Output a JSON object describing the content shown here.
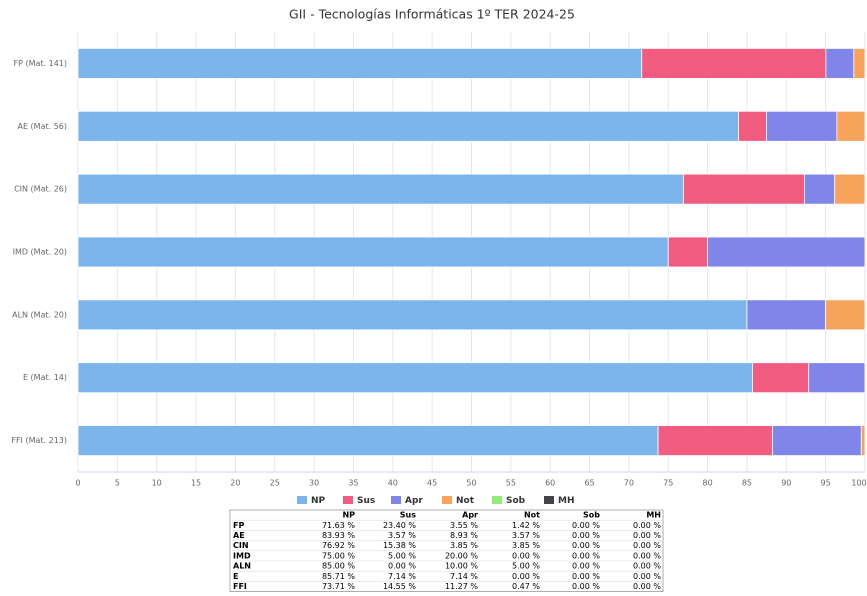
{
  "chart_data": {
    "type": "stacked-bar-horizontal",
    "title": "GII - Tecnologías Informáticas 1º TER 2024-25",
    "categories": [
      "FP (Mat. 141)",
      "AE (Mat. 56)",
      "CIN (Mat. 26)",
      "IMD (Mat. 20)",
      "ALN (Mat. 20)",
      "E (Mat. 14)",
      "FFI (Mat. 213)"
    ],
    "series": [
      {
        "name": "NP",
        "color": "#7cb5ec",
        "values": [
          71.63,
          83.93,
          76.92,
          75.0,
          85.0,
          85.71,
          73.71
        ],
        "value_labels": [
          "71.63 %",
          "83.93 %",
          "76.92 %",
          "75.00 %",
          "85.00 %",
          "85.71 %",
          "73.71 %"
        ]
      },
      {
        "name": "Sus",
        "color": "#f15c80",
        "values": [
          23.4,
          3.57,
          15.38,
          5.0,
          0.0,
          7.14,
          14.55
        ],
        "value_labels": [
          "23.40 %",
          "3.57 %",
          "15.38 %",
          "5.00 %",
          "0.00 %",
          "7.14 %",
          "14.55 %"
        ]
      },
      {
        "name": "Apr",
        "color": "#8085e9",
        "values": [
          3.55,
          8.93,
          3.85,
          20.0,
          10.0,
          7.14,
          11.27
        ],
        "value_labels": [
          "3.55 %",
          "8.93 %",
          "3.85 %",
          "20.00 %",
          "10.00 %",
          "7.14 %",
          "11.27 %"
        ]
      },
      {
        "name": "Not",
        "color": "#f7a35c",
        "values": [
          1.42,
          3.57,
          3.85,
          0.0,
          5.0,
          0.0,
          0.47
        ],
        "value_labels": [
          "1.42 %",
          "3.57 %",
          "3.85 %",
          "0.00 %",
          "5.00 %",
          "0.00 %",
          "0.47 %"
        ]
      },
      {
        "name": "Sob",
        "color": "#90ed7d",
        "values": [
          0.0,
          0.0,
          0.0,
          0.0,
          0.0,
          0.0,
          0.0
        ],
        "value_labels": [
          "0.00 %",
          "0.00 %",
          "0.00 %",
          "0.00 %",
          "0.00 %",
          "0.00 %",
          "0.00 %"
        ]
      },
      {
        "name": "MH",
        "color": "#434348",
        "values": [
          0.0,
          0.0,
          0.0,
          0.0,
          0.0,
          0.0,
          0.0
        ],
        "value_labels": [
          "0.00 %",
          "0.00 %",
          "0.00 %",
          "0.00 %",
          "0.00 %",
          "0.00 %",
          "0.00 %"
        ]
      }
    ],
    "xlim": [
      0,
      100
    ],
    "xticks": [
      0,
      5,
      10,
      15,
      20,
      25,
      30,
      35,
      40,
      45,
      50,
      55,
      60,
      65,
      70,
      75,
      80,
      85,
      90,
      95,
      100
    ],
    "grid": true,
    "legend": "bottom",
    "table": {
      "rows": [
        "FP",
        "AE",
        "CIN",
        "IMD",
        "ALN",
        "E",
        "FFI"
      ]
    }
  }
}
